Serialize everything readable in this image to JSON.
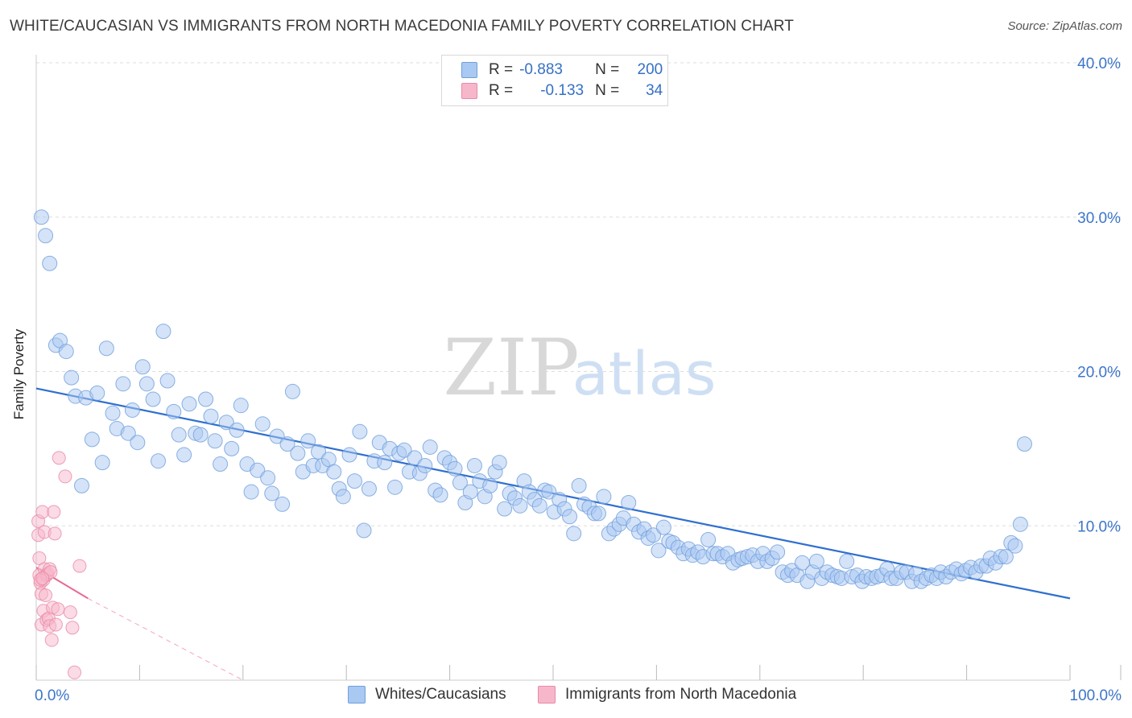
{
  "title": "WHITE/CAUCASIAN VS IMMIGRANTS FROM NORTH MACEDONIA FAMILY POVERTY CORRELATION CHART",
  "source": "Source: ZipAtlas.com",
  "watermark": {
    "zip": "ZIP",
    "atlas": "atlas"
  },
  "legend": {
    "rows": [
      {
        "r_label": "R =",
        "r_value": "-0.883",
        "n_label": "N =",
        "n_value": "200",
        "color": "#a9c8f2"
      },
      {
        "r_label": "R =",
        "r_value": "-0.133",
        "n_label": "N =",
        "n_value": "34",
        "color": "#f7b7cb"
      }
    ]
  },
  "bottom_legend": [
    {
      "label": "Whites/Caucasians",
      "color": "#a9c8f2"
    },
    {
      "label": "Immigrants from North Macedonia",
      "color": "#f7b7cb"
    }
  ],
  "chart_data": {
    "type": "scatter",
    "title": "WHITE/CAUCASIAN VS IMMIGRANTS FROM NORTH MACEDONIA FAMILY POVERTY CORRELATION CHART",
    "xlabel": "",
    "ylabel": "Family Poverty",
    "xlim": [
      0,
      100
    ],
    "ylim": [
      0,
      40
    ],
    "x_tick_labels": [
      "0.0%",
      "100.0%"
    ],
    "y_ticks": [
      10,
      20,
      30,
      40
    ],
    "y_tick_labels": [
      "10.0%",
      "20.0%",
      "30.0%",
      "40.0%"
    ],
    "series": [
      {
        "name": "Whites/Caucasians",
        "color": "#a9c8f2",
        "stroke": "#6f9fdc",
        "trend": {
          "x": [
            0,
            100
          ],
          "y": [
            18.9,
            5.3
          ],
          "color": "#2f6fd0"
        },
        "points": [
          [
            0.5,
            30.0
          ],
          [
            0.9,
            28.8
          ],
          [
            1.3,
            27.0
          ],
          [
            1.9,
            21.7
          ],
          [
            2.3,
            22.0
          ],
          [
            2.9,
            21.3
          ],
          [
            3.4,
            19.6
          ],
          [
            3.8,
            18.4
          ],
          [
            4.4,
            12.6
          ],
          [
            4.8,
            18.3
          ],
          [
            5.4,
            15.6
          ],
          [
            5.9,
            18.6
          ],
          [
            6.4,
            14.1
          ],
          [
            6.8,
            21.5
          ],
          [
            7.4,
            17.3
          ],
          [
            7.8,
            16.3
          ],
          [
            8.4,
            19.2
          ],
          [
            8.9,
            16.0
          ],
          [
            9.3,
            17.5
          ],
          [
            9.8,
            15.4
          ],
          [
            10.3,
            20.3
          ],
          [
            10.7,
            19.2
          ],
          [
            11.3,
            18.2
          ],
          [
            11.8,
            14.2
          ],
          [
            12.3,
            22.6
          ],
          [
            12.7,
            19.4
          ],
          [
            13.3,
            17.4
          ],
          [
            13.8,
            15.9
          ],
          [
            14.3,
            14.6
          ],
          [
            14.8,
            17.9
          ],
          [
            15.4,
            16.0
          ],
          [
            15.9,
            15.9
          ],
          [
            16.4,
            18.2
          ],
          [
            16.9,
            17.1
          ],
          [
            17.3,
            15.5
          ],
          [
            17.8,
            14.0
          ],
          [
            18.4,
            16.7
          ],
          [
            18.9,
            15.0
          ],
          [
            19.4,
            16.2
          ],
          [
            19.8,
            17.8
          ],
          [
            20.4,
            14.0
          ],
          [
            20.8,
            12.2
          ],
          [
            21.4,
            13.6
          ],
          [
            21.9,
            16.6
          ],
          [
            22.4,
            13.1
          ],
          [
            22.8,
            12.1
          ],
          [
            23.3,
            15.8
          ],
          [
            23.8,
            11.4
          ],
          [
            24.3,
            15.3
          ],
          [
            24.8,
            18.7
          ],
          [
            25.3,
            14.7
          ],
          [
            25.8,
            13.5
          ],
          [
            26.3,
            15.5
          ],
          [
            26.8,
            13.9
          ],
          [
            27.3,
            14.8
          ],
          [
            27.7,
            13.9
          ],
          [
            28.3,
            14.3
          ],
          [
            28.8,
            13.5
          ],
          [
            29.3,
            12.4
          ],
          [
            29.7,
            11.9
          ],
          [
            30.3,
            14.6
          ],
          [
            30.8,
            12.9
          ],
          [
            31.3,
            16.1
          ],
          [
            31.7,
            9.7
          ],
          [
            32.2,
            12.4
          ],
          [
            32.7,
            14.2
          ],
          [
            33.2,
            15.4
          ],
          [
            33.7,
            14.1
          ],
          [
            34.2,
            15.0
          ],
          [
            34.7,
            12.5
          ],
          [
            35.1,
            14.7
          ],
          [
            35.6,
            14.9
          ],
          [
            36.1,
            13.5
          ],
          [
            36.6,
            14.4
          ],
          [
            37.1,
            13.4
          ],
          [
            37.6,
            13.9
          ],
          [
            38.1,
            15.1
          ],
          [
            38.6,
            12.3
          ],
          [
            39.1,
            12.0
          ],
          [
            39.5,
            14.4
          ],
          [
            40.0,
            14.1
          ],
          [
            40.5,
            13.7
          ],
          [
            41.0,
            12.8
          ],
          [
            41.5,
            11.5
          ],
          [
            42.0,
            12.2
          ],
          [
            42.4,
            13.9
          ],
          [
            42.9,
            12.9
          ],
          [
            43.4,
            11.9
          ],
          [
            43.9,
            12.6
          ],
          [
            44.4,
            13.5
          ],
          [
            44.8,
            14.1
          ],
          [
            45.3,
            11.1
          ],
          [
            45.8,
            12.1
          ],
          [
            46.3,
            11.8
          ],
          [
            46.8,
            11.3
          ],
          [
            47.2,
            12.9
          ],
          [
            47.7,
            12.2
          ],
          [
            48.2,
            11.7
          ],
          [
            48.7,
            11.3
          ],
          [
            49.2,
            12.3
          ],
          [
            49.6,
            12.2
          ],
          [
            50.1,
            10.9
          ],
          [
            50.6,
            11.7
          ],
          [
            51.1,
            11.1
          ],
          [
            51.6,
            10.6
          ],
          [
            52.0,
            9.5
          ],
          [
            52.5,
            12.6
          ],
          [
            53.0,
            11.4
          ],
          [
            53.5,
            11.2
          ],
          [
            54.0,
            10.8
          ],
          [
            54.4,
            10.8
          ],
          [
            54.9,
            11.9
          ],
          [
            55.4,
            9.5
          ],
          [
            55.9,
            9.8
          ],
          [
            56.4,
            10.1
          ],
          [
            56.8,
            10.5
          ],
          [
            57.3,
            11.5
          ],
          [
            57.8,
            10.1
          ],
          [
            58.3,
            9.6
          ],
          [
            58.8,
            9.8
          ],
          [
            59.2,
            9.2
          ],
          [
            59.7,
            9.4
          ],
          [
            60.2,
            8.4
          ],
          [
            60.7,
            9.9
          ],
          [
            61.2,
            9.0
          ],
          [
            61.6,
            8.9
          ],
          [
            62.1,
            8.6
          ],
          [
            62.6,
            8.2
          ],
          [
            63.1,
            8.5
          ],
          [
            63.5,
            8.1
          ],
          [
            64.0,
            8.3
          ],
          [
            64.5,
            8.0
          ],
          [
            65.0,
            9.1
          ],
          [
            65.5,
            8.2
          ],
          [
            65.9,
            8.2
          ],
          [
            66.4,
            8.0
          ],
          [
            66.9,
            8.2
          ],
          [
            67.4,
            7.6
          ],
          [
            67.9,
            7.8
          ],
          [
            68.3,
            7.9
          ],
          [
            68.8,
            8.0
          ],
          [
            69.3,
            8.1
          ],
          [
            69.8,
            7.7
          ],
          [
            70.3,
            8.2
          ],
          [
            70.7,
            7.7
          ],
          [
            71.2,
            7.9
          ],
          [
            71.7,
            8.3
          ],
          [
            72.2,
            7.0
          ],
          [
            72.7,
            6.8
          ],
          [
            73.1,
            7.1
          ],
          [
            73.6,
            6.8
          ],
          [
            74.1,
            7.6
          ],
          [
            74.6,
            6.4
          ],
          [
            75.1,
            7.0
          ],
          [
            75.5,
            7.7
          ],
          [
            76.0,
            6.6
          ],
          [
            76.5,
            7.0
          ],
          [
            77.0,
            6.8
          ],
          [
            77.5,
            6.7
          ],
          [
            77.9,
            6.6
          ],
          [
            78.4,
            7.7
          ],
          [
            78.9,
            6.7
          ],
          [
            79.4,
            6.8
          ],
          [
            79.9,
            6.4
          ],
          [
            80.3,
            6.7
          ],
          [
            80.8,
            6.6
          ],
          [
            81.3,
            6.7
          ],
          [
            81.8,
            6.8
          ],
          [
            82.3,
            7.2
          ],
          [
            82.7,
            6.6
          ],
          [
            83.2,
            6.6
          ],
          [
            83.7,
            7.0
          ],
          [
            84.2,
            7.0
          ],
          [
            84.7,
            6.4
          ],
          [
            85.1,
            6.9
          ],
          [
            85.6,
            6.4
          ],
          [
            86.1,
            6.6
          ],
          [
            86.6,
            6.8
          ],
          [
            87.1,
            6.6
          ],
          [
            87.5,
            7.0
          ],
          [
            88.0,
            6.7
          ],
          [
            88.5,
            7.0
          ],
          [
            89.0,
            7.2
          ],
          [
            89.5,
            6.9
          ],
          [
            89.9,
            7.1
          ],
          [
            90.4,
            7.3
          ],
          [
            90.9,
            7.0
          ],
          [
            91.4,
            7.4
          ],
          [
            91.9,
            7.4
          ],
          [
            92.3,
            7.9
          ],
          [
            92.8,
            7.6
          ],
          [
            93.3,
            8.0
          ],
          [
            93.8,
            8.0
          ],
          [
            94.3,
            8.9
          ],
          [
            94.7,
            8.7
          ],
          [
            95.2,
            10.1
          ],
          [
            95.6,
            15.3
          ]
        ]
      },
      {
        "name": "Immigrants from North Macedonia",
        "color": "#f7b7cb",
        "stroke": "#e88aa7",
        "trend": {
          "x": [
            0,
            5,
            20
          ],
          "y": [
            7.3,
            5.3,
            0
          ],
          "color": "#e96a92"
        },
        "points": [
          [
            0.2,
            10.3
          ],
          [
            0.2,
            9.4
          ],
          [
            0.3,
            7.9
          ],
          [
            0.3,
            6.8
          ],
          [
            0.4,
            6.3
          ],
          [
            0.5,
            5.6
          ],
          [
            0.5,
            3.6
          ],
          [
            0.6,
            10.9
          ],
          [
            0.7,
            4.5
          ],
          [
            0.7,
            6.5
          ],
          [
            0.8,
            9.6
          ],
          [
            0.8,
            7.2
          ],
          [
            0.9,
            5.5
          ],
          [
            1.0,
            3.9
          ],
          [
            1.0,
            6.8
          ],
          [
            1.1,
            6.9
          ],
          [
            1.2,
            4.0
          ],
          [
            1.3,
            3.5
          ],
          [
            1.3,
            7.2
          ],
          [
            1.4,
            7.0
          ],
          [
            1.5,
            2.6
          ],
          [
            1.6,
            4.7
          ],
          [
            1.7,
            10.9
          ],
          [
            1.8,
            9.5
          ],
          [
            1.9,
            3.6
          ],
          [
            2.1,
            4.6
          ],
          [
            2.2,
            14.4
          ],
          [
            2.8,
            13.2
          ],
          [
            3.3,
            4.4
          ],
          [
            3.5,
            3.4
          ],
          [
            3.7,
            0.5
          ],
          [
            4.2,
            7.4
          ],
          [
            0.4,
            6.5
          ],
          [
            0.6,
            6.6
          ]
        ]
      }
    ]
  }
}
